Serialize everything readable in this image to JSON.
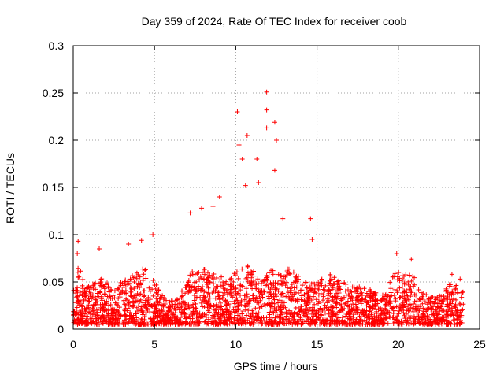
{
  "chart_data": {
    "type": "scatter",
    "title": "Day 359 of 2024, Rate Of TEC Index for receiver coob",
    "xlabel": "GPS time / hours",
    "ylabel": "ROTI / TECUs",
    "xlim": [
      0,
      25
    ],
    "ylim": [
      0,
      0.3
    ],
    "xticks": [
      0,
      5,
      10,
      15,
      20,
      25
    ],
    "yticks": [
      0,
      0.05,
      0.1,
      0.15,
      0.2,
      0.25,
      0.3
    ],
    "xtick_labels": [
      "0",
      "5",
      "10",
      "15",
      "20",
      "25"
    ],
    "ytick_labels": [
      "0",
      "0.05",
      "0.1",
      "0.15",
      "0.2",
      "0.25",
      "0.3"
    ],
    "grid": true,
    "marker": "+",
    "series": [
      {
        "name": "ROTI",
        "color": "#ff0000",
        "x_range": [
          0.0,
          24.0
        ],
        "baseline_range": [
          0.005,
          0.045
        ],
        "notable_points": [
          {
            "x": 0.3,
            "y": 0.093
          },
          {
            "x": 0.25,
            "y": 0.08
          },
          {
            "x": 1.6,
            "y": 0.085
          },
          {
            "x": 3.4,
            "y": 0.09
          },
          {
            "x": 4.2,
            "y": 0.094
          },
          {
            "x": 4.9,
            "y": 0.1
          },
          {
            "x": 7.2,
            "y": 0.123
          },
          {
            "x": 7.9,
            "y": 0.128
          },
          {
            "x": 8.6,
            "y": 0.13
          },
          {
            "x": 9.0,
            "y": 0.14
          },
          {
            "x": 10.1,
            "y": 0.23
          },
          {
            "x": 10.2,
            "y": 0.195
          },
          {
            "x": 10.4,
            "y": 0.18
          },
          {
            "x": 10.7,
            "y": 0.205
          },
          {
            "x": 10.6,
            "y": 0.152
          },
          {
            "x": 11.3,
            "y": 0.18
          },
          {
            "x": 11.4,
            "y": 0.155
          },
          {
            "x": 11.9,
            "y": 0.251
          },
          {
            "x": 11.9,
            "y": 0.232
          },
          {
            "x": 11.9,
            "y": 0.213
          },
          {
            "x": 12.4,
            "y": 0.219
          },
          {
            "x": 12.5,
            "y": 0.2
          },
          {
            "x": 12.4,
            "y": 0.168
          },
          {
            "x": 12.9,
            "y": 0.117
          },
          {
            "x": 14.6,
            "y": 0.117
          },
          {
            "x": 14.7,
            "y": 0.095
          },
          {
            "x": 19.9,
            "y": 0.08
          },
          {
            "x": 20.8,
            "y": 0.074
          },
          {
            "x": 23.3,
            "y": 0.058
          },
          {
            "x": 23.8,
            "y": 0.053
          }
        ]
      }
    ]
  }
}
